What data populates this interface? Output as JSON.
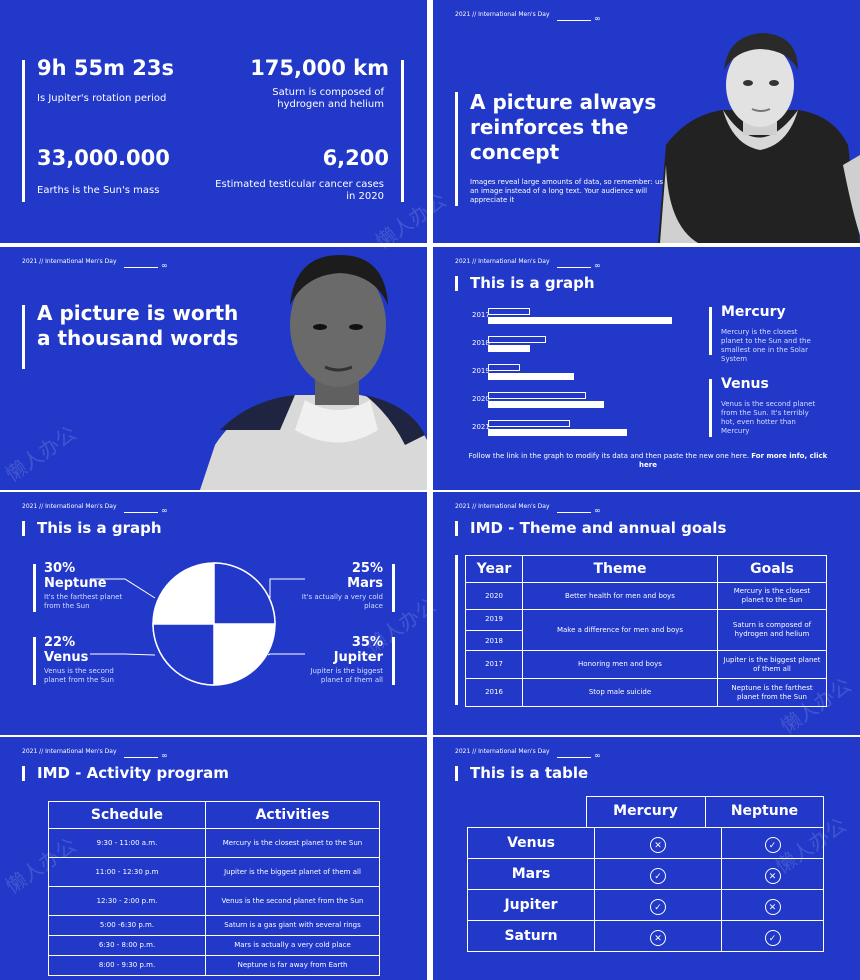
{
  "header": {
    "label": "2021 // International Men's Day",
    "glasses_icon": "glasses-icon"
  },
  "slide1": {
    "stats": [
      {
        "value": "9h 55m 23s",
        "desc": "Is Jupiter's rotation period"
      },
      {
        "value": "175,000 km",
        "desc": "Saturn is composed of hydrogen and helium"
      },
      {
        "value": "33,000.000",
        "desc": "Earths is the Sun's mass"
      },
      {
        "value": "6,200",
        "desc": "Estimated testicular cancer cases in 2020"
      }
    ]
  },
  "slide2": {
    "title": "A picture always reinforces the concept",
    "body": "Images reveal large amounts of data, so remember: use an image instead of a long text. Your audience will appreciate it"
  },
  "slide3": {
    "title": "A picture is worth a thousand words"
  },
  "slide4": {
    "title": "This is a graph",
    "years": [
      "2017",
      "2018",
      "2019",
      "2020",
      "2021"
    ],
    "planet1": {
      "name": "Mercury",
      "desc": "Mercury is the closest planet to the Sun and the smallest one in the Solar System"
    },
    "planet2": {
      "name": "Venus",
      "desc": "Venus is the second planet from the Sun. It's terribly hot, even hotter than Mercury"
    },
    "footer": "Follow the link in the graph to modify its data and then paste the new one here.",
    "footer_bold": "For more info, click here"
  },
  "slide5": {
    "title": "This is a graph",
    "items": [
      {
        "pct": "30%",
        "name": "Neptune",
        "desc": "It's the farthest planet from the Sun"
      },
      {
        "pct": "25%",
        "name": "Mars",
        "desc": "It's actually a very cold place"
      },
      {
        "pct": "22%",
        "name": "Venus",
        "desc": "Venus is the second planet from the Sun"
      },
      {
        "pct": "35%",
        "name": "Jupiter",
        "desc": "Jupiter is the biggest planet of them all"
      }
    ]
  },
  "slide6": {
    "title": "IMD - Theme and annual goals",
    "headers": [
      "Year",
      "Theme",
      "Goals"
    ],
    "rows": [
      {
        "year": "2020",
        "theme": "Better health for men and boys",
        "goal": "Mercury is the closest planet to the Sun"
      },
      {
        "year": "2019",
        "year2": "2018",
        "theme": "Make a difference for men and boys",
        "goal": "Saturn is composed of hydrogen and helium"
      },
      {
        "year": "2017",
        "theme": "Honoring men and boys",
        "goal": "Jupiter is the biggest planet of them all"
      },
      {
        "year": "2016",
        "theme": "Stop male suicide",
        "goal": "Neptune is the farthest planet from the Sun"
      }
    ]
  },
  "slide7": {
    "title": "IMD - Activity program",
    "headers": [
      "Schedule",
      "Activities"
    ],
    "rows": [
      {
        "time": "9:30 - 11:00 a.m.",
        "act": "Mercury is the closest planet to the Sun"
      },
      {
        "time": "11:00 - 12:30 p.m",
        "act": "Jupiter is the biggest planet of them all"
      },
      {
        "time": "12:30 - 2:00 p.m.",
        "act": "Venus is the second planet from the Sun"
      },
      {
        "time": "5:00 -6:30 p.m.",
        "act": "Saturn is a gas giant with several rings"
      },
      {
        "time": "6:30 - 8:00 p.m.",
        "act": "Mars is actually a very cold place"
      },
      {
        "time": "8:00 - 9:30 p.m.",
        "act": "Neptune is far away from Earth"
      }
    ]
  },
  "slide8": {
    "title": "This is a table",
    "cols": [
      "Mercury",
      "Neptune"
    ],
    "rows": [
      {
        "name": "Venus",
        "c1": "cross",
        "c2": "check"
      },
      {
        "name": "Mars",
        "c1": "check",
        "c2": "cross"
      },
      {
        "name": "Jupiter",
        "c1": "check",
        "c2": "cross"
      },
      {
        "name": "Saturn",
        "c1": "cross",
        "c2": "check"
      }
    ]
  },
  "watermark": "懒人办公",
  "colors": {
    "background": "#2138c8",
    "foreground": "#ffffff"
  }
}
